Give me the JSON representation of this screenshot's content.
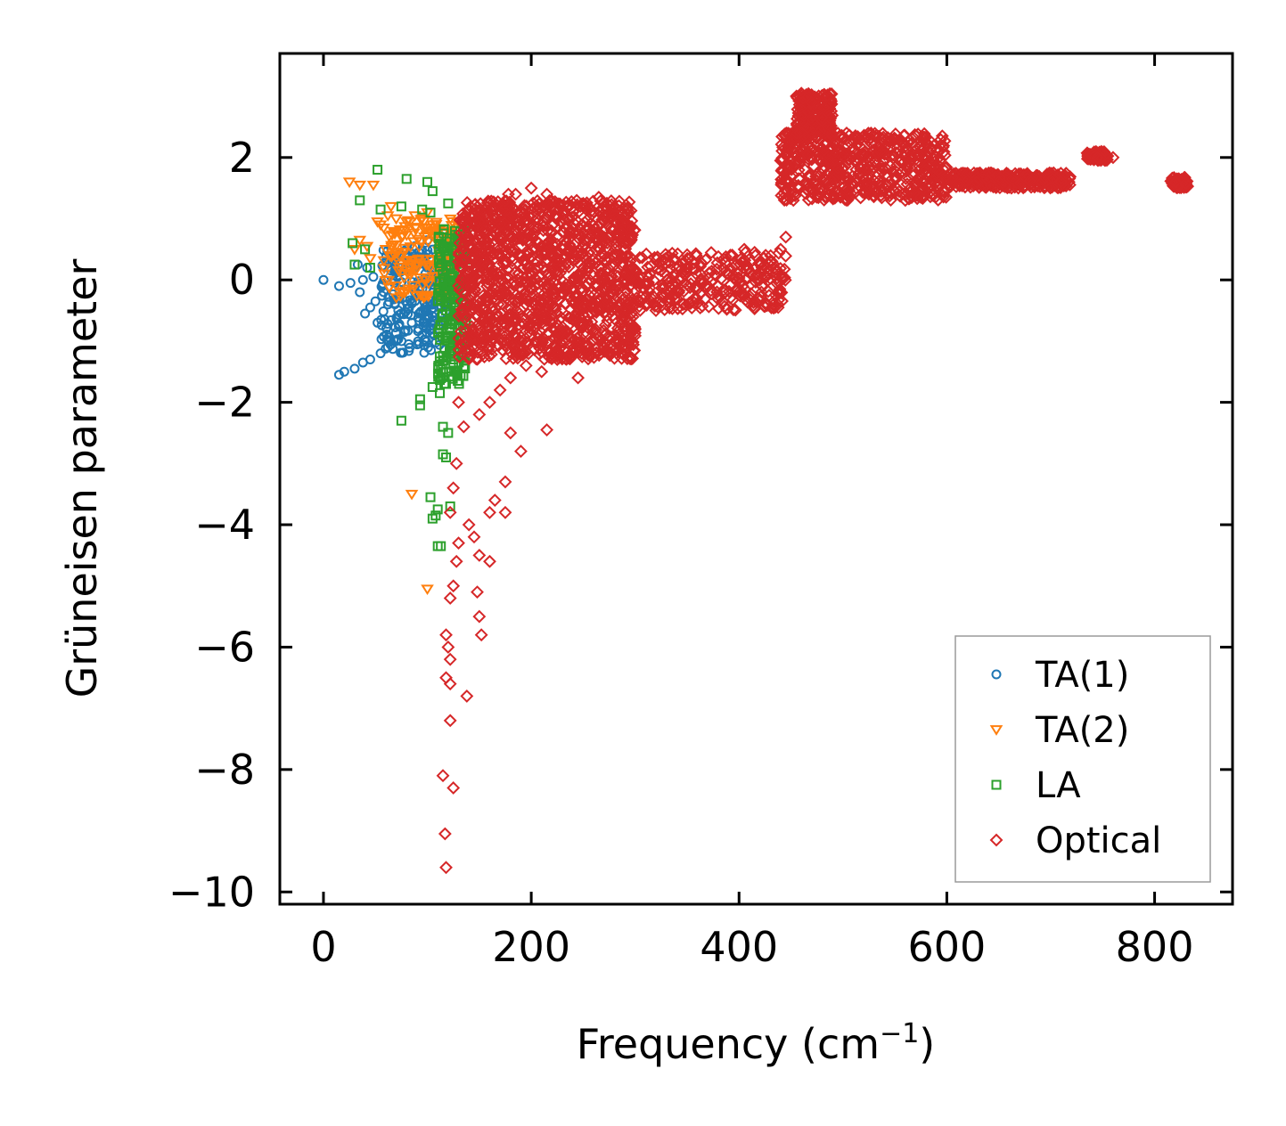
{
  "chart_data": {
    "type": "scatter",
    "title": "",
    "xlabel": "Frequency (cm",
    "xlabel_sup": "−1",
    "xlabel_suffix": ")",
    "ylabel": "Grüneisen parameter",
    "xlim": [
      -42,
      875
    ],
    "ylim": [
      -10.2,
      3.7
    ],
    "xticks": [
      0,
      200,
      400,
      600,
      800
    ],
    "xtick_labels": [
      "0",
      "200",
      "400",
      "600",
      "800"
    ],
    "yticks": [
      -10,
      -8,
      -6,
      -4,
      -2,
      0,
      2
    ],
    "ytick_labels": [
      "−10",
      "−8",
      "−6",
      "−4",
      "−2",
      "0",
      "2"
    ],
    "grid": false,
    "legend_position": "bottom-right",
    "series": [
      {
        "name": "TA(1)",
        "marker": "circle",
        "color": "#1f77b4",
        "points": [
          [
            0,
            0
          ],
          [
            15,
            -0.1
          ],
          [
            26,
            -0.05
          ],
          [
            33,
            0.25
          ],
          [
            35,
            -0.2
          ],
          [
            38,
            0
          ],
          [
            45,
            -0.45
          ],
          [
            52,
            -0.7
          ],
          [
            60,
            0.3
          ],
          [
            65,
            0.15
          ],
          [
            70,
            0.4
          ],
          [
            75,
            0.2
          ],
          [
            80,
            0.5
          ],
          [
            88,
            0.55
          ],
          [
            95,
            0.3
          ],
          [
            100,
            0.65
          ],
          [
            105,
            0.2
          ],
          [
            110,
            0.35
          ],
          [
            115,
            -0.1
          ],
          [
            118,
            -0.3
          ],
          [
            125,
            -0.05
          ],
          [
            15,
            -1.55
          ],
          [
            20,
            -1.5
          ],
          [
            30,
            -1.45
          ],
          [
            38,
            -1.35
          ],
          [
            45,
            -1.3
          ],
          [
            55,
            -1.2
          ],
          [
            62,
            -1.1
          ],
          [
            70,
            -1.0
          ],
          [
            78,
            -0.85
          ],
          [
            85,
            -0.7
          ],
          [
            92,
            -0.55
          ],
          [
            100,
            -0.4
          ],
          [
            108,
            -0.25
          ],
          [
            112,
            -0.6
          ],
          [
            95,
            -0.9
          ],
          [
            82,
            -1.05
          ],
          [
            40,
            -0.55
          ],
          [
            50,
            -0.35
          ],
          [
            58,
            -0.2
          ],
          [
            68,
            -0.05
          ],
          [
            72,
            -0.5
          ],
          [
            88,
            -0.2
          ],
          [
            98,
            0.1
          ],
          [
            48,
            0.05
          ],
          [
            42,
            0.2
          ]
        ],
        "clusters": [
          {
            "x": [
              55,
              118
            ],
            "y": [
              -1.2,
              0.5
            ],
            "n": 200
          }
        ]
      },
      {
        "name": "TA(2)",
        "marker": "triangle-down",
        "color": "#ff7f0e",
        "points": [
          [
            25,
            1.6
          ],
          [
            35,
            1.55
          ],
          [
            48,
            1.55
          ],
          [
            52,
            0.95
          ],
          [
            55,
            0.9
          ],
          [
            58,
            0.85
          ],
          [
            62,
            1.05
          ],
          [
            65,
            1.2
          ],
          [
            70,
            1.0
          ],
          [
            80,
            0.95
          ],
          [
            88,
            1.05
          ],
          [
            95,
            1.0
          ],
          [
            100,
            1.1
          ],
          [
            105,
            0.9
          ],
          [
            110,
            0.8
          ],
          [
            115,
            0.6
          ],
          [
            120,
            0.4
          ],
          [
            125,
            0.2
          ],
          [
            30,
            0.5
          ],
          [
            35,
            0.65
          ],
          [
            42,
            0.55
          ],
          [
            45,
            0.35
          ],
          [
            85,
            -3.5
          ],
          [
            100,
            -5.05
          ],
          [
            130,
            0
          ],
          [
            125,
            -0.3
          ],
          [
            60,
            0.5
          ],
          [
            75,
            0.7
          ]
        ],
        "clusters": [
          {
            "x": [
              58,
              130
            ],
            "y": [
              -0.3,
              1.0
            ],
            "n": 160
          }
        ]
      },
      {
        "name": "LA",
        "marker": "square",
        "color": "#2ca02c",
        "points": [
          [
            52,
            1.8
          ],
          [
            80,
            1.65
          ],
          [
            100,
            1.6
          ],
          [
            35,
            1.3
          ],
          [
            55,
            1.15
          ],
          [
            75,
            1.2
          ],
          [
            95,
            1.15
          ],
          [
            103,
            1.1
          ],
          [
            105,
            1.45
          ],
          [
            120,
            1.25
          ],
          [
            28,
            0.6
          ],
          [
            40,
            0.5
          ],
          [
            30,
            0.25
          ],
          [
            45,
            0.2
          ],
          [
            75,
            -2.3
          ],
          [
            93,
            -1.95
          ],
          [
            93,
            -2.05
          ],
          [
            105,
            -1.75
          ],
          [
            112,
            -1.85
          ],
          [
            118,
            -1.7
          ],
          [
            115,
            -2.4
          ],
          [
            120,
            -2.5
          ],
          [
            115,
            -2.85
          ],
          [
            118,
            -2.9
          ],
          [
            122,
            -3.7
          ],
          [
            103,
            -3.55
          ],
          [
            110,
            -3.75
          ],
          [
            108,
            -3.85
          ],
          [
            105,
            -3.9
          ],
          [
            110,
            -4.35
          ],
          [
            113,
            -4.35
          ],
          [
            112,
            -1.25
          ],
          [
            125,
            -1.3
          ],
          [
            118,
            -0.5
          ],
          [
            122,
            -0.8
          ],
          [
            128,
            -0.95
          ]
        ],
        "clusters": [
          {
            "x": [
              110,
              138
            ],
            "y": [
              -1.7,
              0.9
            ],
            "n": 200
          }
        ]
      },
      {
        "name": "Optical",
        "marker": "diamond",
        "color": "#d62728",
        "points": [
          [
            130,
            -2.0
          ],
          [
            135,
            -2.4
          ],
          [
            128,
            -3.0
          ],
          [
            125,
            -3.4
          ],
          [
            122,
            -3.8
          ],
          [
            130,
            -4.3
          ],
          [
            128,
            -4.6
          ],
          [
            125,
            -5.0
          ],
          [
            122,
            -5.2
          ],
          [
            118,
            -5.8
          ],
          [
            120,
            -6.0
          ],
          [
            122,
            -6.2
          ],
          [
            118,
            -6.5
          ],
          [
            122,
            -6.6
          ],
          [
            138,
            -6.8
          ],
          [
            122,
            -7.2
          ],
          [
            115,
            -8.1
          ],
          [
            125,
            -8.3
          ],
          [
            117,
            -9.05
          ],
          [
            118,
            -9.6
          ],
          [
            140,
            -4.0
          ],
          [
            145,
            -4.2
          ],
          [
            150,
            -4.5
          ],
          [
            148,
            -5.1
          ],
          [
            150,
            -5.5
          ],
          [
            152,
            -5.8
          ],
          [
            160,
            -4.6
          ],
          [
            160,
            -3.8
          ],
          [
            165,
            -3.6
          ],
          [
            175,
            -3.3
          ],
          [
            175,
            -3.8
          ],
          [
            180,
            -2.5
          ],
          [
            190,
            -2.8
          ],
          [
            150,
            -2.2
          ],
          [
            160,
            -2.0
          ],
          [
            170,
            -1.8
          ],
          [
            180,
            -1.6
          ],
          [
            195,
            -1.4
          ],
          [
            210,
            -1.5
          ],
          [
            225,
            -1.3
          ],
          [
            245,
            -1.6
          ],
          [
            260,
            -1.2
          ],
          [
            280,
            -1.0
          ],
          [
            300,
            -0.8
          ],
          [
            320,
            -0.5
          ],
          [
            340,
            -0.3
          ],
          [
            360,
            -0.15
          ],
          [
            380,
            -0.1
          ],
          [
            400,
            -0.05
          ],
          [
            420,
            0.0
          ],
          [
            440,
            0.5
          ],
          [
            445,
            0.7
          ],
          [
            405,
            0.5
          ],
          [
            415,
            0.45
          ],
          [
            430,
            0.3
          ],
          [
            135,
            1.0
          ],
          [
            150,
            0.95
          ],
          [
            165,
            1.0
          ],
          [
            178,
            1.4
          ],
          [
            185,
            1.4
          ],
          [
            200,
            1.5
          ],
          [
            215,
            1.4
          ],
          [
            235,
            1.2
          ],
          [
            250,
            1.25
          ],
          [
            265,
            1.35
          ],
          [
            280,
            1.2
          ],
          [
            130,
            0.3
          ],
          [
            160,
            0.5
          ],
          [
            200,
            0.1
          ],
          [
            250,
            0.2
          ],
          [
            275,
            0.0
          ],
          [
            215,
            -2.45
          ],
          [
            460,
            3.05
          ],
          [
            470,
            2.9
          ],
          [
            480,
            2.65
          ],
          [
            490,
            2.35
          ],
          [
            500,
            2.0
          ],
          [
            510,
            2.1
          ],
          [
            520,
            1.85
          ],
          [
            540,
            2.05
          ],
          [
            555,
            2.3
          ],
          [
            565,
            2.0
          ],
          [
            580,
            1.8
          ],
          [
            600,
            1.7
          ],
          [
            620,
            1.62
          ],
          [
            650,
            1.6
          ],
          [
            680,
            1.62
          ],
          [
            710,
            1.6
          ],
          [
            740,
            2.05
          ],
          [
            745,
            2.0
          ],
          [
            760,
            2.0
          ],
          [
            820,
            1.6
          ],
          [
            830,
            1.58
          ],
          [
            440,
            1.95
          ],
          [
            490,
            1.4
          ],
          [
            530,
            1.5
          ],
          [
            560,
            1.3
          ],
          [
            575,
            1.35
          ],
          [
            585,
            1.45
          ]
        ],
        "clusters": [
          {
            "x": [
              130,
              300
            ],
            "y": [
              -1.3,
              1.3
            ],
            "n": 1400
          },
          {
            "x": [
              300,
              445
            ],
            "y": [
              -0.5,
              0.45
            ],
            "n": 300
          },
          {
            "x": [
              440,
              600
            ],
            "y": [
              1.3,
              2.4
            ],
            "n": 600
          },
          {
            "x": [
              455,
              490
            ],
            "y": [
              2.3,
              3.05
            ],
            "n": 200
          },
          {
            "x": [
              600,
              720
            ],
            "y": [
              1.5,
              1.75
            ],
            "n": 300
          },
          {
            "x": [
              735,
              755
            ],
            "y": [
              1.95,
              2.1
            ],
            "n": 80
          },
          {
            "x": [
              815,
              832
            ],
            "y": [
              1.5,
              1.68
            ],
            "n": 60
          }
        ]
      }
    ]
  }
}
